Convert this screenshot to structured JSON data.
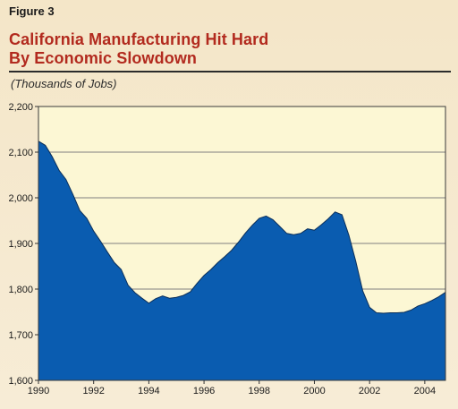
{
  "figure_label": "Figure 3",
  "title_line1": "California Manufacturing Hit Hard",
  "title_line2": "By Economic Slowdown",
  "units_label": "(Thousands of Jobs)",
  "colors": {
    "area": "#0a5cb0",
    "plot_bg": "#fcf7d4",
    "grid": "#7f7f7f",
    "title": "#b22a1e"
  },
  "chart_data": {
    "type": "area",
    "title": "California Manufacturing Hit Hard By Economic Slowdown",
    "ylabel": "(Thousands of Jobs)",
    "xlim": [
      1990,
      2004.75
    ],
    "ylim": [
      1600,
      2200
    ],
    "y_ticks": [
      1600,
      1700,
      1800,
      1900,
      2000,
      2100,
      2200
    ],
    "y_tick_labels": [
      "1,600",
      "1,700",
      "1,800",
      "1,900",
      "2,000",
      "2,100",
      "2,200"
    ],
    "x_ticks": [
      1990,
      1992,
      1994,
      1996,
      1998,
      2000,
      2002,
      2004
    ],
    "x_tick_labels": [
      "1990",
      "1992",
      "1994",
      "1996",
      "1998",
      "2000",
      "2002",
      "2004"
    ],
    "grid": "horizontal",
    "series": [
      {
        "points": [
          [
            1990.0,
            2124
          ],
          [
            1990.25,
            2115
          ],
          [
            1990.5,
            2090
          ],
          [
            1990.75,
            2060
          ],
          [
            1991.0,
            2040
          ],
          [
            1991.25,
            2007
          ],
          [
            1991.5,
            1972
          ],
          [
            1991.75,
            1955
          ],
          [
            1992.0,
            1927
          ],
          [
            1992.25,
            1905
          ],
          [
            1992.5,
            1881
          ],
          [
            1992.75,
            1858
          ],
          [
            1993.0,
            1843
          ],
          [
            1993.25,
            1808
          ],
          [
            1993.5,
            1792
          ],
          [
            1993.75,
            1780
          ],
          [
            1994.0,
            1769
          ],
          [
            1994.25,
            1779
          ],
          [
            1994.5,
            1785
          ],
          [
            1994.75,
            1780
          ],
          [
            1995.0,
            1782
          ],
          [
            1995.25,
            1786
          ],
          [
            1995.5,
            1794
          ],
          [
            1995.75,
            1813
          ],
          [
            1996.0,
            1830
          ],
          [
            1996.25,
            1843
          ],
          [
            1996.5,
            1858
          ],
          [
            1996.75,
            1871
          ],
          [
            1997.0,
            1885
          ],
          [
            1997.25,
            1903
          ],
          [
            1997.5,
            1923
          ],
          [
            1997.75,
            1940
          ],
          [
            1998.0,
            1955
          ],
          [
            1998.25,
            1960
          ],
          [
            1998.5,
            1952
          ],
          [
            1998.75,
            1937
          ],
          [
            1999.0,
            1922
          ],
          [
            1999.25,
            1919
          ],
          [
            1999.5,
            1922
          ],
          [
            1999.75,
            1932
          ],
          [
            2000.0,
            1929
          ],
          [
            2000.25,
            1941
          ],
          [
            2000.5,
            1954
          ],
          [
            2000.75,
            1969
          ],
          [
            2001.0,
            1963
          ],
          [
            2001.25,
            1918
          ],
          [
            2001.5,
            1861
          ],
          [
            2001.75,
            1796
          ],
          [
            2002.0,
            1760
          ],
          [
            2002.25,
            1748
          ],
          [
            2002.5,
            1747
          ],
          [
            2002.75,
            1748
          ],
          [
            2003.0,
            1748
          ],
          [
            2003.25,
            1749
          ],
          [
            2003.5,
            1754
          ],
          [
            2003.75,
            1763
          ],
          [
            2004.0,
            1768
          ],
          [
            2004.25,
            1775
          ],
          [
            2004.5,
            1783
          ],
          [
            2004.75,
            1793
          ]
        ]
      }
    ]
  }
}
